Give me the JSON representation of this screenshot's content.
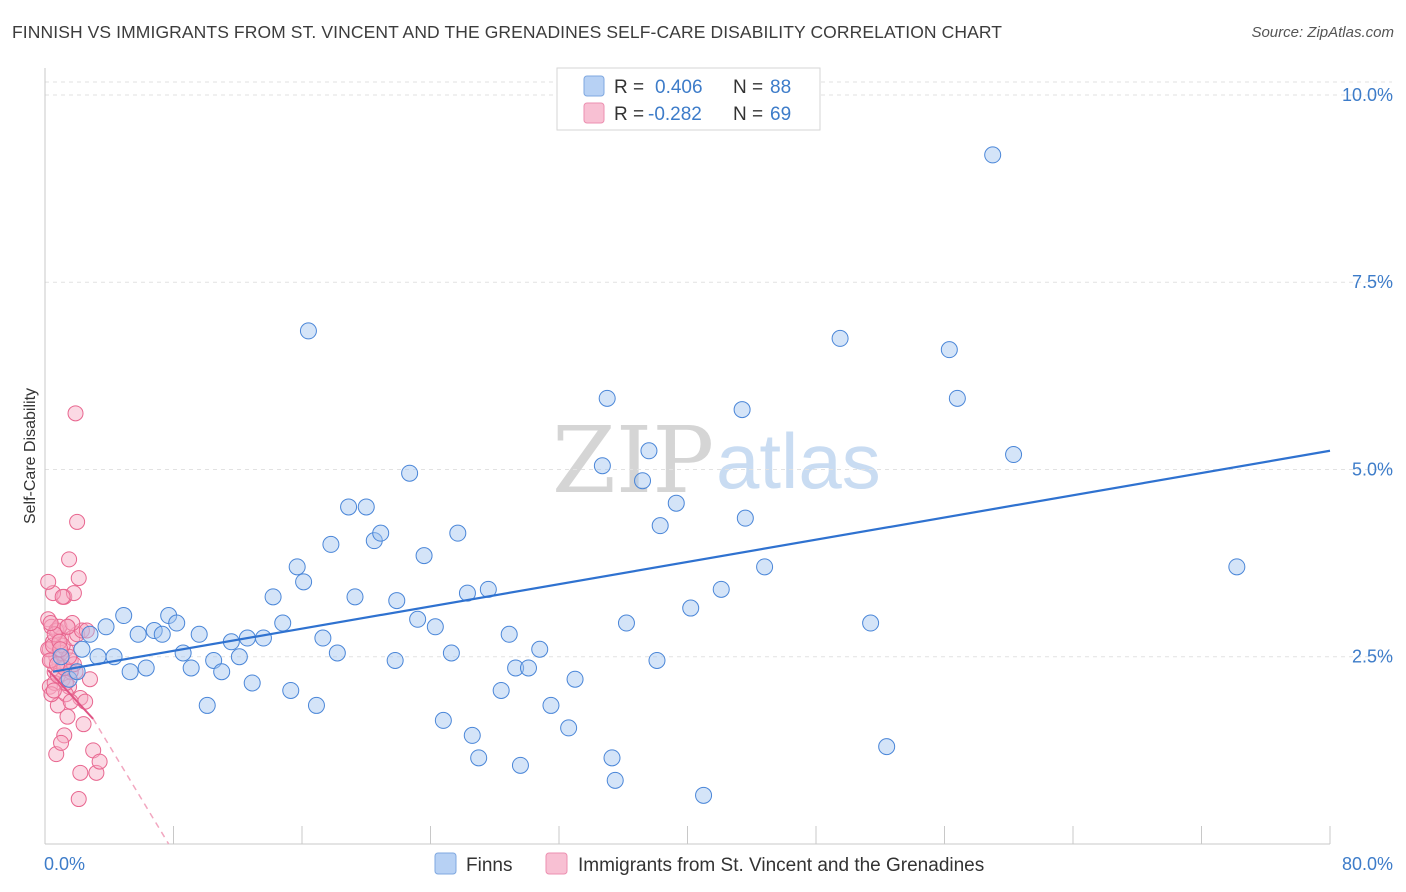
{
  "header": {
    "title": "FINNISH VS IMMIGRANTS FROM ST. VINCENT AND THE GRENADINES SELF-CARE DISABILITY CORRELATION CHART",
    "source": "Source: ZipAtlas.com"
  },
  "watermark": {
    "zip": "ZIP",
    "atlas": "atlas"
  },
  "colors": {
    "blue": "#4a86d8",
    "blue_fill": "rgba(160,196,240,0.45)",
    "pink": "#e8668f",
    "pink_fill": "rgba(246,170,196,0.45)",
    "axis_label": "#3d7cc9"
  },
  "legend": {
    "series": [
      {
        "r_label": "R =",
        "r_value": "0.406",
        "n_label": "N =",
        "n_value": "88"
      },
      {
        "r_label": "R =",
        "r_value": "-0.282",
        "n_label": "N =",
        "n_value": "69"
      }
    ]
  },
  "bottom_legend": {
    "finns": "Finns",
    "immigrants": "Immigrants from St. Vincent and the Grenadines"
  },
  "chart_data": {
    "type": "scatter",
    "title": "FINNISH VS IMMIGRANTS FROM ST. VINCENT AND THE GRENADINES SELF-CARE DISABILITY CORRELATION CHART",
    "xlabel": "",
    "ylabel": "Self-Care Disability",
    "xlim": [
      0,
      80
    ],
    "ylim": [
      0,
      10.2
    ],
    "x_tick_labels": [
      "0.0%",
      "80.0%"
    ],
    "y_ticks": [
      2.5,
      5.0,
      7.5,
      10.0
    ],
    "y_tick_labels": [
      "2.5%",
      "5.0%",
      "7.5%",
      "10.0%"
    ],
    "grid": true,
    "legend_position": "top-center",
    "series": [
      {
        "name": "Finns",
        "color": "blue",
        "R": 0.406,
        "N": 88,
        "trend": {
          "x0": 0.5,
          "y0": 2.3,
          "x1": 80.0,
          "y1": 5.25
        },
        "points": [
          [
            1.0,
            2.5
          ],
          [
            1.5,
            2.2
          ],
          [
            2.0,
            2.3
          ],
          [
            2.3,
            2.6
          ],
          [
            2.8,
            2.8
          ],
          [
            3.3,
            2.5
          ],
          [
            3.8,
            2.9
          ],
          [
            4.3,
            2.5
          ],
          [
            4.9,
            3.05
          ],
          [
            5.3,
            2.3
          ],
          [
            5.8,
            2.8
          ],
          [
            6.3,
            2.35
          ],
          [
            6.8,
            2.85
          ],
          [
            7.3,
            2.8
          ],
          [
            7.7,
            3.05
          ],
          [
            8.2,
            2.95
          ],
          [
            8.6,
            2.55
          ],
          [
            9.1,
            2.35
          ],
          [
            9.6,
            2.8
          ],
          [
            10.1,
            1.85
          ],
          [
            10.5,
            2.45
          ],
          [
            11.0,
            2.3
          ],
          [
            11.6,
            2.7
          ],
          [
            12.1,
            2.5
          ],
          [
            12.6,
            2.75
          ],
          [
            12.9,
            2.15
          ],
          [
            13.6,
            2.75
          ],
          [
            14.2,
            3.3
          ],
          [
            14.8,
            2.95
          ],
          [
            15.3,
            2.05
          ],
          [
            15.7,
            3.7
          ],
          [
            16.1,
            3.5
          ],
          [
            16.4,
            6.85
          ],
          [
            16.9,
            1.85
          ],
          [
            17.3,
            2.75
          ],
          [
            17.8,
            4.0
          ],
          [
            18.2,
            2.55
          ],
          [
            18.9,
            4.5
          ],
          [
            19.3,
            3.3
          ],
          [
            20.0,
            4.5
          ],
          [
            20.5,
            4.05
          ],
          [
            20.9,
            4.15
          ],
          [
            21.8,
            2.45
          ],
          [
            21.9,
            3.25
          ],
          [
            22.7,
            4.95
          ],
          [
            23.2,
            3.0
          ],
          [
            23.6,
            3.85
          ],
          [
            24.3,
            2.9
          ],
          [
            24.8,
            1.65
          ],
          [
            25.3,
            2.55
          ],
          [
            25.7,
            4.15
          ],
          [
            26.3,
            3.35
          ],
          [
            26.6,
            1.45
          ],
          [
            27.0,
            1.15
          ],
          [
            27.6,
            3.4
          ],
          [
            28.4,
            2.05
          ],
          [
            28.9,
            2.8
          ],
          [
            29.3,
            2.35
          ],
          [
            29.6,
            1.05
          ],
          [
            30.1,
            2.35
          ],
          [
            30.8,
            2.6
          ],
          [
            31.5,
            1.85
          ],
          [
            32.6,
            1.55
          ],
          [
            33.0,
            2.2
          ],
          [
            34.7,
            5.05
          ],
          [
            35.0,
            5.95
          ],
          [
            35.3,
            1.15
          ],
          [
            35.5,
            0.85
          ],
          [
            36.2,
            2.95
          ],
          [
            37.2,
            4.85
          ],
          [
            37.6,
            5.25
          ],
          [
            38.1,
            2.45
          ],
          [
            38.3,
            4.25
          ],
          [
            39.3,
            4.55
          ],
          [
            40.2,
            3.15
          ],
          [
            41.0,
            0.65
          ],
          [
            42.1,
            3.4
          ],
          [
            43.4,
            5.8
          ],
          [
            43.6,
            4.35
          ],
          [
            44.8,
            3.7
          ],
          [
            49.5,
            6.75
          ],
          [
            51.4,
            2.95
          ],
          [
            52.4,
            1.3
          ],
          [
            56.3,
            6.6
          ],
          [
            56.8,
            5.95
          ],
          [
            59.0,
            9.2
          ],
          [
            60.3,
            5.2
          ],
          [
            74.2,
            3.7
          ]
        ]
      },
      {
        "name": "Immigrants from St. Vincent and the Grenadines",
        "color": "pink",
        "R": -0.282,
        "N": 69,
        "trend": {
          "x0": 0.2,
          "y0": 2.32,
          "x1": 3.0,
          "y1": 1.67
        },
        "trend_dashed": {
          "x0": 3.0,
          "y0": 1.67,
          "x1": 7.7,
          "y1": 0.0
        },
        "points": [
          [
            0.2,
            3.0
          ],
          [
            0.3,
            2.6
          ],
          [
            0.4,
            2.9
          ],
          [
            0.5,
            2.7
          ],
          [
            0.6,
            2.3
          ],
          [
            0.7,
            2.5
          ],
          [
            0.8,
            2.85
          ],
          [
            0.9,
            2.4
          ],
          [
            1.0,
            2.75
          ],
          [
            1.1,
            2.2
          ],
          [
            1.2,
            3.3
          ],
          [
            1.3,
            2.6
          ],
          [
            1.4,
            2.9
          ],
          [
            1.5,
            2.1
          ],
          [
            1.6,
            2.45
          ],
          [
            1.7,
            2.75
          ],
          [
            1.8,
            3.35
          ],
          [
            1.9,
            2.3
          ],
          [
            2.0,
            2.8
          ],
          [
            2.1,
            3.55
          ],
          [
            2.2,
            1.95
          ],
          [
            2.3,
            2.85
          ],
          [
            2.4,
            1.6
          ],
          [
            2.5,
            1.9
          ],
          [
            0.3,
            2.1
          ],
          [
            0.4,
            2.45
          ],
          [
            0.5,
            3.35
          ],
          [
            0.6,
            2.15
          ],
          [
            0.7,
            2.85
          ],
          [
            0.8,
            1.85
          ],
          [
            0.9,
            2.9
          ],
          [
            1.0,
            2.55
          ],
          [
            1.1,
            2.65
          ],
          [
            1.2,
            1.45
          ],
          [
            1.3,
            2.0
          ],
          [
            1.4,
            1.7
          ],
          [
            1.5,
            3.8
          ],
          [
            1.6,
            2.3
          ],
          [
            1.7,
            2.95
          ],
          [
            1.8,
            2.4
          ],
          [
            1.9,
            5.75
          ],
          [
            2.0,
            4.3
          ],
          [
            2.1,
            0.6
          ],
          [
            2.2,
            0.95
          ],
          [
            2.6,
            2.85
          ],
          [
            2.8,
            2.2
          ],
          [
            3.0,
            1.25
          ],
          [
            3.2,
            0.95
          ],
          [
            3.4,
            1.1
          ],
          [
            0.2,
            2.6
          ],
          [
            0.3,
            2.45
          ],
          [
            0.4,
            2.0
          ],
          [
            0.5,
            2.65
          ],
          [
            0.6,
            2.8
          ],
          [
            0.7,
            1.2
          ],
          [
            0.8,
            2.25
          ],
          [
            0.9,
            2.7
          ],
          [
            1.0,
            1.35
          ],
          [
            1.1,
            3.3
          ],
          [
            1.2,
            2.35
          ],
          [
            1.3,
            2.15
          ],
          [
            1.4,
            2.9
          ],
          [
            1.5,
            2.5
          ],
          [
            1.6,
            1.9
          ],
          [
            0.2,
            3.5
          ],
          [
            0.35,
            2.95
          ],
          [
            0.55,
            2.05
          ],
          [
            0.75,
            2.4
          ],
          [
            0.95,
            2.6
          ]
        ]
      }
    ]
  }
}
